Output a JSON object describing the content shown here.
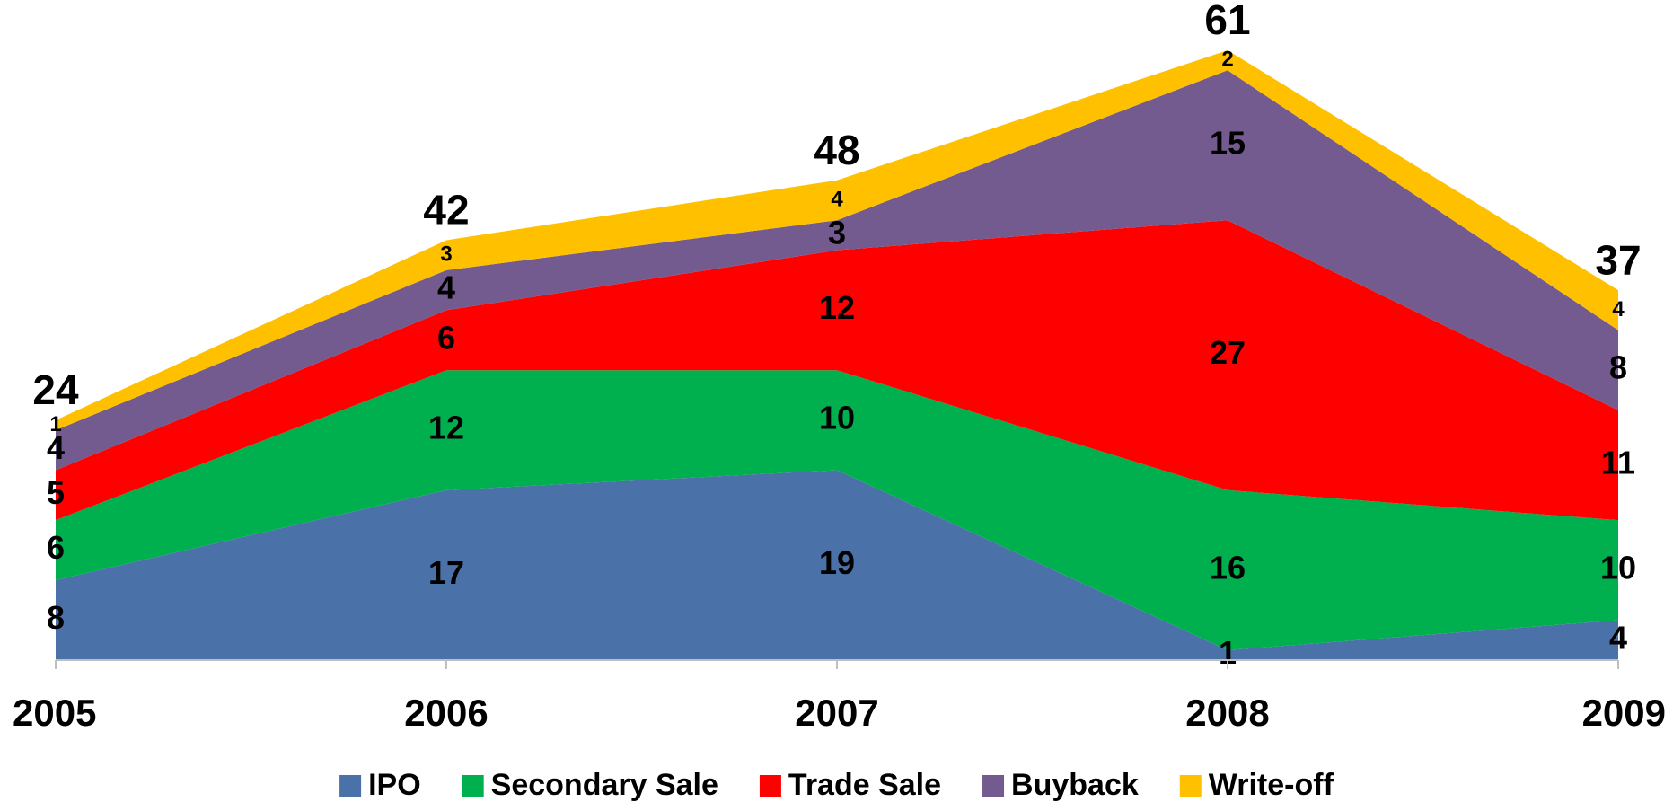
{
  "chart_data": {
    "type": "stacked_area",
    "categories": [
      "2005",
      "2006",
      "2007",
      "2008",
      "2009"
    ],
    "series": [
      {
        "name": "IPO",
        "color": "#4a72a8",
        "values": [
          8,
          17,
          19,
          1,
          4
        ]
      },
      {
        "name": "Secondary Sale",
        "color": "#00b04f",
        "values": [
          6,
          12,
          10,
          16,
          10
        ]
      },
      {
        "name": "Trade Sale",
        "color": "#ff0000",
        "values": [
          5,
          6,
          12,
          27,
          11
        ]
      },
      {
        "name": "Buyback",
        "color": "#735a8f",
        "values": [
          4,
          4,
          3,
          15,
          8
        ]
      },
      {
        "name": "Write-off",
        "color": "#ffc000",
        "values": [
          1,
          3,
          4,
          2,
          4
        ]
      }
    ],
    "totals": [
      24,
      42,
      48,
      61,
      37
    ],
    "legend": "bottom"
  }
}
